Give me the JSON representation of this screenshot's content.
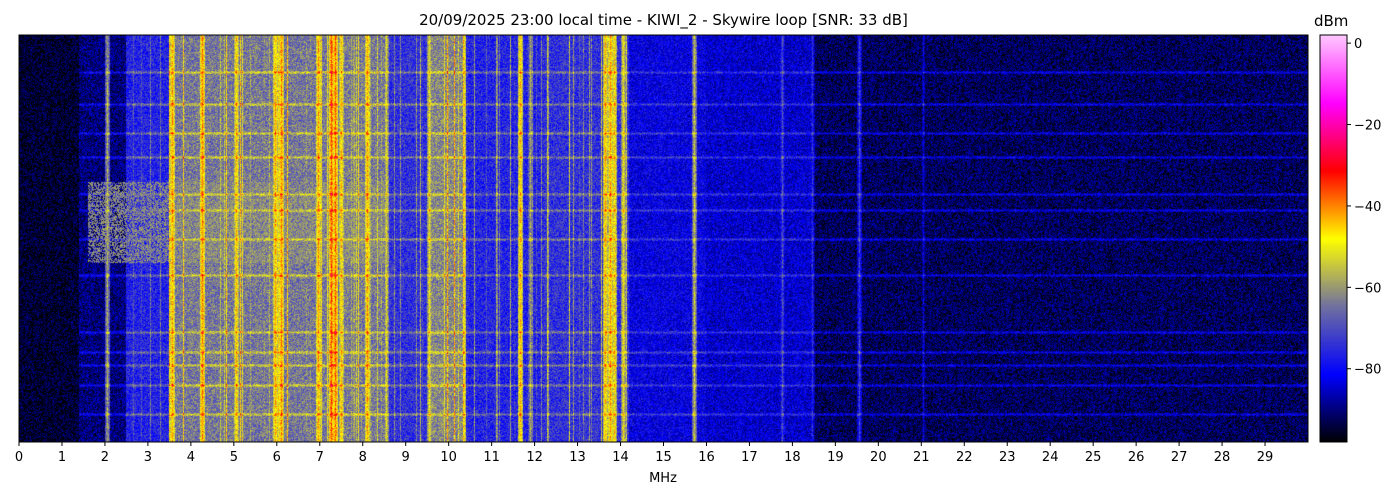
{
  "chart_data": {
    "type": "heatmap",
    "title": "20/09/2025 23:00 local time - KIWI_2 - Skywire loop [SNR: 33 dB]",
    "xlabel": "MHz",
    "ylabel": "",
    "xlim": [
      0,
      30
    ],
    "x_ticks": [
      "0",
      "1",
      "2",
      "3",
      "4",
      "5",
      "6",
      "7",
      "8",
      "9",
      "10",
      "11",
      "12",
      "13",
      "14",
      "15",
      "16",
      "17",
      "18",
      "19",
      "20",
      "21",
      "22",
      "23",
      "24",
      "25",
      "26",
      "27",
      "28",
      "29"
    ],
    "colorbar": {
      "label": "dBm",
      "range": [
        -98,
        2
      ],
      "ticks": [
        "0",
        "−20",
        "−40",
        "−60",
        "−80"
      ],
      "tick_values": [
        0,
        -20,
        -40,
        -60,
        -80
      ],
      "colors": [
        "#000000",
        "#0000ff",
        "#7070a0",
        "#ffff00",
        "#ff0000",
        "#ff00ff",
        "#ffc8ff"
      ]
    },
    "bands": [
      {
        "from": 0.0,
        "to": 1.4,
        "level": -95
      },
      {
        "from": 1.4,
        "to": 2.5,
        "level": -90
      },
      {
        "from": 2.5,
        "to": 3.5,
        "level": -76
      },
      {
        "from": 3.5,
        "to": 8.5,
        "level": -64
      },
      {
        "from": 8.5,
        "to": 9.5,
        "level": -74
      },
      {
        "from": 9.5,
        "to": 10.4,
        "level": -62
      },
      {
        "from": 10.4,
        "to": 12.2,
        "level": -76
      },
      {
        "from": 12.2,
        "to": 14.2,
        "level": -74
      },
      {
        "from": 14.2,
        "to": 16.0,
        "level": -82
      },
      {
        "from": 16.0,
        "to": 18.5,
        "level": -84
      },
      {
        "from": 18.5,
        "to": 30.0,
        "level": -92
      }
    ],
    "strong_lines": [
      {
        "freq": 2.05,
        "level": -58
      },
      {
        "freq": 3.55,
        "level": -42
      },
      {
        "freq": 4.25,
        "level": -40
      },
      {
        "freq": 5.05,
        "level": -45
      },
      {
        "freq": 5.95,
        "level": -43
      },
      {
        "freq": 6.1,
        "level": -40
      },
      {
        "freq": 6.95,
        "level": -42
      },
      {
        "freq": 7.25,
        "level": -36
      },
      {
        "freq": 7.35,
        "level": -38
      },
      {
        "freq": 7.5,
        "level": -45
      },
      {
        "freq": 8.1,
        "level": -42
      },
      {
        "freq": 8.55,
        "level": -52
      },
      {
        "freq": 9.55,
        "level": -50
      },
      {
        "freq": 9.95,
        "level": -55
      },
      {
        "freq": 11.65,
        "level": -44
      },
      {
        "freq": 11.9,
        "level": -58
      },
      {
        "freq": 13.65,
        "level": -44
      },
      {
        "freq": 13.75,
        "level": -42
      },
      {
        "freq": 13.85,
        "level": -46
      },
      {
        "freq": 14.05,
        "level": -50
      },
      {
        "freq": 15.7,
        "level": -55
      },
      {
        "freq": 17.75,
        "level": -70
      },
      {
        "freq": 18.45,
        "level": -75
      },
      {
        "freq": 19.55,
        "level": -72
      },
      {
        "freq": 21.05,
        "level": -82
      }
    ],
    "noise_rows": [
      0.09,
      0.17,
      0.24,
      0.3,
      0.39,
      0.43,
      0.5,
      0.59,
      0.73,
      0.78,
      0.81,
      0.86,
      0.93
    ],
    "burst_region": {
      "from": 1.6,
      "to": 8.6,
      "row_from": 0.36,
      "row_to": 0.56,
      "level": -62
    }
  }
}
